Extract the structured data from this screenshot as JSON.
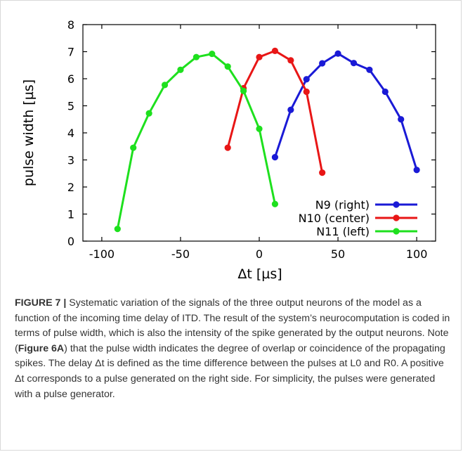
{
  "chart_data": {
    "type": "line",
    "xlabel": "Δt [µs]",
    "ylabel": "pulse width [µs]",
    "xlim": [
      -112,
      112
    ],
    "ylim": [
      0,
      8
    ],
    "x_ticks": [
      -100,
      -50,
      0,
      50,
      100
    ],
    "y_ticks": [
      0,
      1,
      2,
      3,
      4,
      5,
      6,
      7,
      8
    ],
    "x_tick_labels": [
      "-100",
      "-50",
      "0",
      "50",
      "100"
    ],
    "y_tick_labels": [
      "0",
      "1",
      "2",
      "3",
      "4",
      "5",
      "6",
      "7",
      "8"
    ],
    "legend_position": "bottom-right",
    "series": [
      {
        "name": "N9 (right)",
        "color": "#1a1ad6",
        "x": [
          10,
          20,
          30,
          40,
          50,
          60,
          70,
          80,
          90,
          100
        ],
        "y": [
          3.1,
          4.85,
          5.98,
          6.57,
          6.93,
          6.58,
          6.33,
          5.52,
          4.5,
          2.63
        ]
      },
      {
        "name": "N10 (center)",
        "color": "#e81616",
        "x": [
          -20,
          -10,
          0,
          10,
          20,
          30,
          40
        ],
        "y": [
          3.45,
          5.65,
          6.8,
          7.03,
          6.68,
          5.52,
          2.53
        ]
      },
      {
        "name": "N11 (left)",
        "color": "#1ee01e",
        "x": [
          -90,
          -80,
          -70,
          -60,
          -50,
          -40,
          -30,
          -20,
          -10,
          0,
          10
        ],
        "y": [
          0.45,
          3.45,
          4.72,
          5.77,
          6.33,
          6.8,
          6.92,
          6.45,
          5.55,
          4.15,
          1.37
        ]
      }
    ]
  },
  "caption": {
    "label": "FIGURE 7 |",
    "text1": " Systematic variation of the signals of the three output neurons of the model as a function of the incoming time delay of ITD. The result of the system’s neurocomputation is coded in terms of pulse width, which is also the intensity of the spike generated by the output neurons. Note (",
    "ref": "Figure 6A",
    "text2": ") that the pulse width indicates the degree of overlap or coincidence of the propagating spikes. The delay Δt is defined as the time difference between the pulses at L0 and R0. A positive Δt corresponds to a pulse generated on the right side. For simplicity, the pulses were generated with a pulse generator."
  }
}
